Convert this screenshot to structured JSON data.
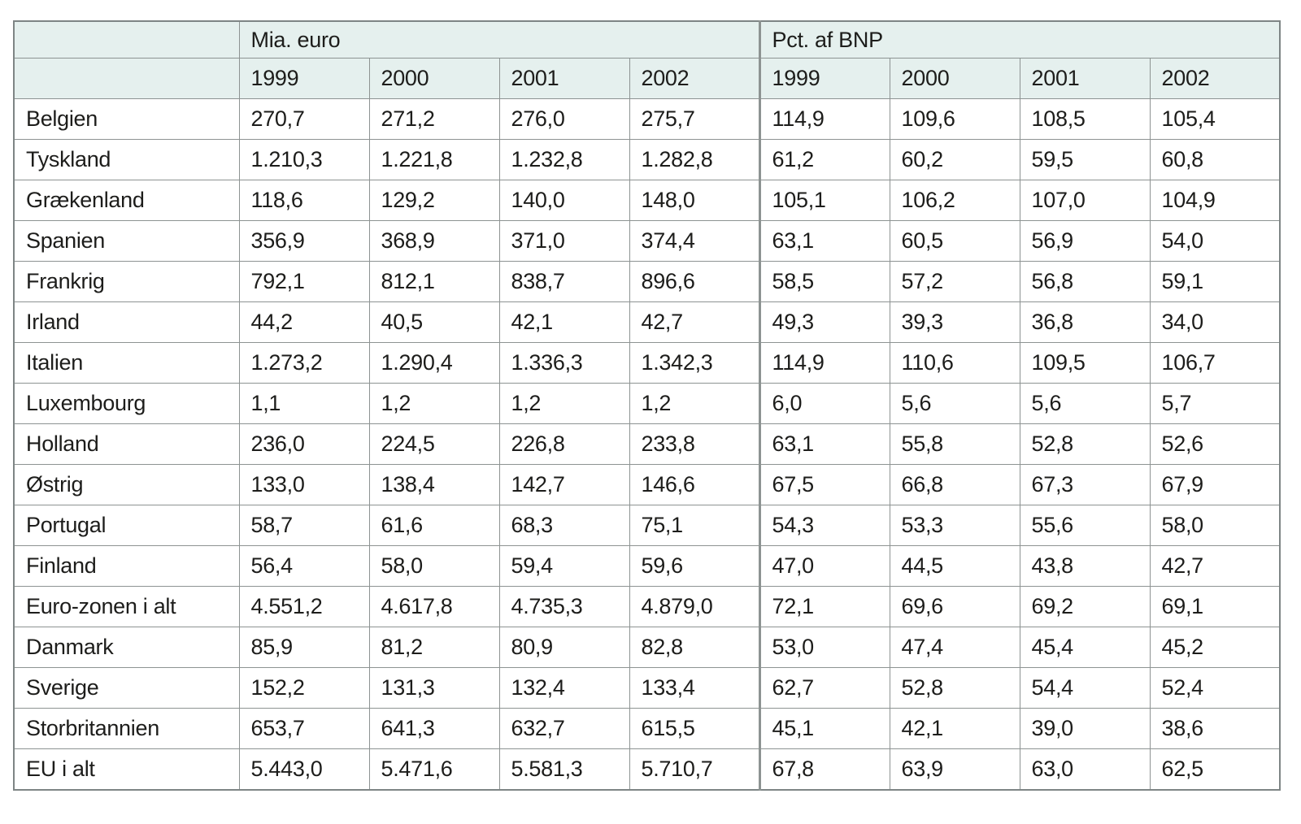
{
  "chart_data": {
    "type": "table",
    "col_groups": [
      {
        "label": "Mia. euro"
      },
      {
        "label": "Pct. af BNP"
      }
    ],
    "years": [
      "1999",
      "2000",
      "2001",
      "2002"
    ],
    "rows": [
      {
        "label": "Belgien",
        "mia": [
          "270,7",
          "271,2",
          "276,0",
          "275,7"
        ],
        "pct": [
          "114,9",
          "109,6",
          "108,5",
          "105,4"
        ]
      },
      {
        "label": "Tyskland",
        "mia": [
          "1.210,3",
          "1.221,8",
          "1.232,8",
          "1.282,8"
        ],
        "pct": [
          "61,2",
          "60,2",
          "59,5",
          "60,8"
        ]
      },
      {
        "label": "Grækenland",
        "mia": [
          "118,6",
          "129,2",
          "140,0",
          "148,0"
        ],
        "pct": [
          "105,1",
          "106,2",
          "107,0",
          "104,9"
        ]
      },
      {
        "label": "Spanien",
        "mia": [
          "356,9",
          "368,9",
          "371,0",
          "374,4"
        ],
        "pct": [
          "63,1",
          "60,5",
          "56,9",
          "54,0"
        ]
      },
      {
        "label": "Frankrig",
        "mia": [
          "792,1",
          "812,1",
          "838,7",
          "896,6"
        ],
        "pct": [
          "58,5",
          "57,2",
          "56,8",
          "59,1"
        ]
      },
      {
        "label": "Irland",
        "mia": [
          "44,2",
          "40,5",
          "42,1",
          "42,7"
        ],
        "pct": [
          "49,3",
          "39,3",
          "36,8",
          "34,0"
        ]
      },
      {
        "label": "Italien",
        "mia": [
          "1.273,2",
          "1.290,4",
          "1.336,3",
          "1.342,3"
        ],
        "pct": [
          "114,9",
          "110,6",
          "109,5",
          "106,7"
        ]
      },
      {
        "label": "Luxembourg",
        "mia": [
          "1,1",
          "1,2",
          "1,2",
          "1,2"
        ],
        "pct": [
          "6,0",
          "5,6",
          "5,6",
          "5,7"
        ]
      },
      {
        "label": "Holland",
        "mia": [
          "236,0",
          "224,5",
          "226,8",
          "233,8"
        ],
        "pct": [
          "63,1",
          "55,8",
          "52,8",
          "52,6"
        ]
      },
      {
        "label": "Østrig",
        "mia": [
          "133,0",
          "138,4",
          "142,7",
          "146,6"
        ],
        "pct": [
          "67,5",
          "66,8",
          "67,3",
          "67,9"
        ]
      },
      {
        "label": "Portugal",
        "mia": [
          "58,7",
          "61,6",
          "68,3",
          "75,1"
        ],
        "pct": [
          "54,3",
          "53,3",
          "55,6",
          "58,0"
        ]
      },
      {
        "label": "Finland",
        "mia": [
          "56,4",
          "58,0",
          "59,4",
          "59,6"
        ],
        "pct": [
          "47,0",
          "44,5",
          "43,8",
          "42,7"
        ]
      },
      {
        "label": "Euro-zonen i alt",
        "mia": [
          "4.551,2",
          "4.617,8",
          "4.735,3",
          "4.879,0"
        ],
        "pct": [
          "72,1",
          "69,6",
          "69,2",
          "69,1"
        ]
      },
      {
        "label": "Danmark",
        "mia": [
          "85,9",
          "81,2",
          "80,9",
          "82,8"
        ],
        "pct": [
          "53,0",
          "47,4",
          "45,4",
          "45,2"
        ]
      },
      {
        "label": "Sverige",
        "mia": [
          "152,2",
          "131,3",
          "132,4",
          "133,4"
        ],
        "pct": [
          "62,7",
          "52,8",
          "54,4",
          "52,4"
        ]
      },
      {
        "label": "Storbritannien",
        "mia": [
          "653,7",
          "641,3",
          "632,7",
          "615,5"
        ],
        "pct": [
          "45,1",
          "42,1",
          "39,0",
          "38,6"
        ]
      },
      {
        "label": "EU i alt",
        "mia": [
          "5.443,0",
          "5.471,6",
          "5.581,3",
          "5.710,7"
        ],
        "pct": [
          "67,8",
          "63,9",
          "63,0",
          "62,5"
        ]
      }
    ],
    "layout_hints": {
      "grid": "on",
      "number_alignment": "left",
      "decimal_separator": "comma",
      "thousands_separator": "period"
    }
  },
  "colors": {
    "header_bg": "#e5f0ee",
    "body_bg": "#ffffff",
    "border": "#8d9392",
    "outer_border": "#7e8585",
    "text": "#1d1d1b"
  }
}
